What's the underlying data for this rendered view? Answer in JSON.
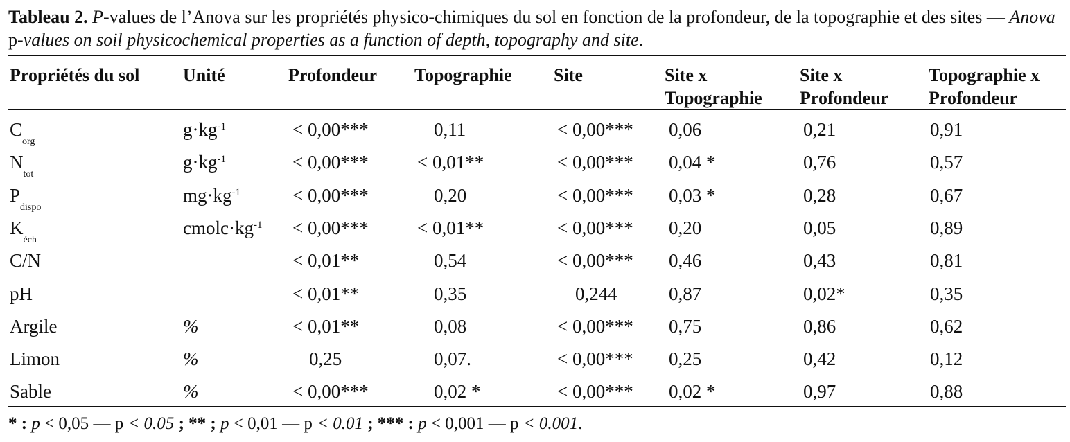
{
  "caption": {
    "label": "Tableau 2.",
    "p_letter": "P",
    "french_text": "-values de l’Anova sur les propriétés physico-chimiques du sol en fonction de la profondeur, de la topographie et des sites — ",
    "english_italic_1": "Anova",
    "english_plain": " p",
    "english_italic_2": "-values on soil physicochemical properties as a function of depth, topography and site",
    "end": "."
  },
  "table": {
    "headers": {
      "property": "Propriétés du sol",
      "unit": "Unité",
      "depth": "Profondeur",
      "topo": "Topographie",
      "site": "Site",
      "site_topo_1": "Site x",
      "site_topo_2": "Topographie",
      "site_depth_1": "Site x",
      "site_depth_2": "Profondeur",
      "topo_depth_1": "Topographie x",
      "topo_depth_2": "Profondeur"
    },
    "rows": [
      {
        "prop": "C",
        "sub": "org",
        "unit": "g·kg",
        "sup": "-1",
        "depth": "< 0,00***",
        "topo": "0,11",
        "site": "< 0,00***",
        "site_topo": "0,06",
        "site_depth": "0,21",
        "topo_depth": "0,91"
      },
      {
        "prop": "N",
        "sub": "tot",
        "unit": "g·kg",
        "sup": "-1",
        "depth": "< 0,00***",
        "topo": "< 0,01**",
        "site": "< 0,00***",
        "site_topo": "0,04 *",
        "site_depth": "0,76",
        "topo_depth": "0,57"
      },
      {
        "prop": "P",
        "sub": "dispo",
        "unit": "mg·kg",
        "sup": "-1",
        "depth": "< 0,00***",
        "topo": "0,20",
        "site": "< 0,00***",
        "site_topo": "0,03 *",
        "site_depth": "0,28",
        "topo_depth": "0,67"
      },
      {
        "prop": "K",
        "sub": "éch",
        "unit": "cmolc·kg",
        "sup": "-1",
        "depth": "< 0,00***",
        "topo": "< 0,01**",
        "site": "< 0,00***",
        "site_topo": "0,20",
        "site_depth": "0,05",
        "topo_depth": "0,89"
      },
      {
        "prop": "C/N",
        "sub": "",
        "unit": "",
        "sup": "",
        "depth": "< 0,01**",
        "topo": "0,54",
        "site": "< 0,00***",
        "site_topo": "0,46",
        "site_depth": "0,43",
        "topo_depth": "0,81"
      },
      {
        "prop": "pH",
        "sub": "",
        "unit": "",
        "sup": "",
        "depth": "< 0,01**",
        "topo": "0,35",
        "site": "0,244",
        "site_topo": "0,87",
        "site_depth": "0,02*",
        "topo_depth": "0,35"
      },
      {
        "prop": "Argile",
        "sub": "",
        "unit": "%",
        "sup": "",
        "depth": "< 0,01**",
        "topo": "0,08",
        "site": "< 0,00***",
        "site_topo": "0,75",
        "site_depth": "0,86",
        "topo_depth": "0,62"
      },
      {
        "prop": "Limon",
        "sub": "",
        "unit": "%",
        "sup": "",
        "depth": "0,25",
        "topo": "0,07.",
        "site": "< 0,00***",
        "site_topo": "0,25",
        "site_depth": "0,42",
        "topo_depth": "0,12"
      },
      {
        "prop": "Sable",
        "sub": "",
        "unit": "%",
        "sup": "",
        "depth": "< 0,00***",
        "topo": "0,02 *",
        "site": "< 0,00***",
        "site_topo": "0,02 *",
        "site_depth": "0,97",
        "topo_depth": "0,88"
      }
    ]
  },
  "footnote": {
    "s1": "* : ",
    "p1": "p",
    "v1": " < 0,05",
    "d1": " — p",
    "e1": " < 0.05",
    "sep1": " ; ** ; ",
    "p2": "p",
    "v2": " < 0,01",
    "d2": " — p",
    "e2": " < 0.01",
    "sep2": " ; *** : ",
    "p3": "p",
    "v3": " < 0,001",
    "d3": " — p",
    "e3": " < 0.001",
    "end": "."
  }
}
